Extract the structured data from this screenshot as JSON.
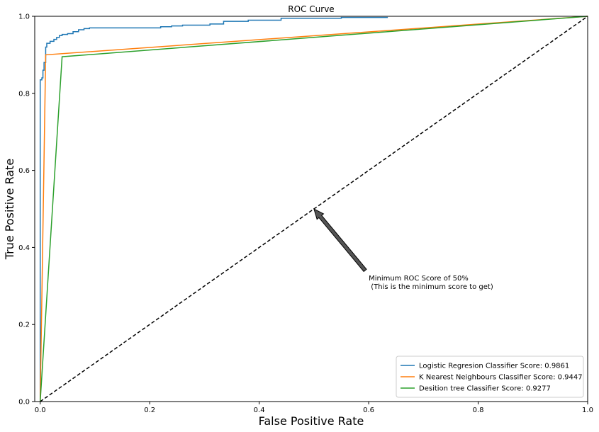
{
  "chart_data": {
    "type": "line",
    "title": "ROC Curve",
    "xlabel": "False Positive Rate",
    "ylabel": "True Positive Rate",
    "xlim": [
      -0.01,
      1.0
    ],
    "ylim": [
      0.0,
      1.0
    ],
    "xticks": [
      0.0,
      0.2,
      0.4,
      0.6,
      0.8,
      1.0
    ],
    "yticks": [
      0.0,
      0.2,
      0.4,
      0.6,
      0.8,
      1.0
    ],
    "xtick_labels": [
      "0.0",
      "0.2",
      "0.4",
      "0.6",
      "0.8",
      "1.0"
    ],
    "ytick_labels": [
      "0.0",
      "0.2",
      "0.4",
      "0.6",
      "0.8",
      "1.0"
    ],
    "grid": false,
    "legend_position": "lower-right",
    "series": [
      {
        "name": "Logistic Regresion Classifier Score: 0.9861",
        "color": "#1f77b4",
        "points": [
          [
            0,
            0
          ],
          [
            0,
            0.835
          ],
          [
            0.003,
            0.835
          ],
          [
            0.003,
            0.84
          ],
          [
            0.005,
            0.84
          ],
          [
            0.005,
            0.86
          ],
          [
            0.007,
            0.86
          ],
          [
            0.007,
            0.88
          ],
          [
            0.01,
            0.88
          ],
          [
            0.01,
            0.92
          ],
          [
            0.012,
            0.92
          ],
          [
            0.012,
            0.93
          ],
          [
            0.018,
            0.93
          ],
          [
            0.018,
            0.935
          ],
          [
            0.025,
            0.935
          ],
          [
            0.025,
            0.94
          ],
          [
            0.03,
            0.94
          ],
          [
            0.03,
            0.945
          ],
          [
            0.035,
            0.945
          ],
          [
            0.035,
            0.95
          ],
          [
            0.04,
            0.95
          ],
          [
            0.04,
            0.953
          ],
          [
            0.05,
            0.953
          ],
          [
            0.05,
            0.955
          ],
          [
            0.06,
            0.955
          ],
          [
            0.06,
            0.96
          ],
          [
            0.07,
            0.96
          ],
          [
            0.07,
            0.965
          ],
          [
            0.08,
            0.965
          ],
          [
            0.08,
            0.968
          ],
          [
            0.09,
            0.968
          ],
          [
            0.09,
            0.97
          ],
          [
            0.22,
            0.97
          ],
          [
            0.22,
            0.973
          ],
          [
            0.24,
            0.973
          ],
          [
            0.24,
            0.975
          ],
          [
            0.26,
            0.975
          ],
          [
            0.26,
            0.977
          ],
          [
            0.31,
            0.977
          ],
          [
            0.31,
            0.98
          ],
          [
            0.335,
            0.98
          ],
          [
            0.335,
            0.987
          ],
          [
            0.38,
            0.987
          ],
          [
            0.38,
            0.99
          ],
          [
            0.44,
            0.99
          ],
          [
            0.44,
            0.995
          ],
          [
            0.55,
            0.995
          ],
          [
            0.55,
            0.997
          ],
          [
            0.635,
            0.997
          ]
        ]
      },
      {
        "name": "K Nearest Neighbours Classifier Score: 0.9447",
        "color": "#ff7f0e",
        "points": [
          [
            0,
            0
          ],
          [
            0.01,
            0.9
          ],
          [
            1.0,
            1.0
          ]
        ]
      },
      {
        "name": "Desition tree Classifier Score: 0.9277",
        "color": "#2ca02c",
        "points": [
          [
            0,
            0
          ],
          [
            0.04,
            0.895
          ],
          [
            1.0,
            1.0
          ]
        ]
      }
    ],
    "reference_line": {
      "points": [
        [
          0,
          0
        ],
        [
          1,
          1
        ]
      ],
      "color": "#000000",
      "style": "dashed"
    },
    "annotation": {
      "line1": "Minimum ROC Score of 50%",
      "line2": " (This is the minimum score to get)",
      "text_xy": [
        0.6,
        0.3
      ],
      "arrow_to": [
        0.5,
        0.5
      ]
    }
  }
}
